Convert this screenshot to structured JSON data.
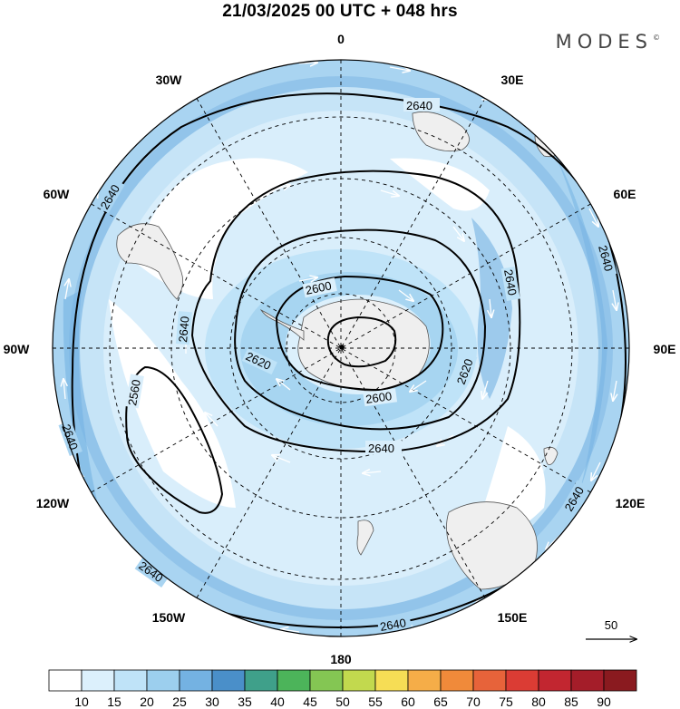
{
  "title": "21/03/2025  00 UTC  + 048 hrs",
  "brand": {
    "name": "MODES",
    "mark": "©"
  },
  "longitude_labels": [
    {
      "id": "lon-0",
      "text": "0"
    },
    {
      "id": "lon-30e",
      "text": "30E"
    },
    {
      "id": "lon-60e",
      "text": "60E"
    },
    {
      "id": "lon-90e",
      "text": "90E"
    },
    {
      "id": "lon-120e",
      "text": "120E"
    },
    {
      "id": "lon-150e",
      "text": "150E"
    },
    {
      "id": "lon-180",
      "text": "180"
    },
    {
      "id": "lon-150w",
      "text": "150W"
    },
    {
      "id": "lon-120w",
      "text": "120W"
    },
    {
      "id": "lon-90w",
      "text": "90W"
    },
    {
      "id": "lon-60w",
      "text": "60W"
    },
    {
      "id": "lon-30w",
      "text": "30W"
    }
  ],
  "contour_labels": [
    {
      "id": "c2640-top",
      "text": "2640"
    },
    {
      "id": "c2640-nw",
      "text": "2640"
    },
    {
      "id": "c2640-e",
      "text": "2640"
    },
    {
      "id": "c2640-inner-e",
      "text": "2640"
    },
    {
      "id": "c2640-w",
      "text": "2640"
    },
    {
      "id": "c2640-sw",
      "text": "2640"
    },
    {
      "id": "c2640-s",
      "text": "2640"
    },
    {
      "id": "c2640-bottom-l",
      "text": "2640"
    },
    {
      "id": "c2640-bottom-r",
      "text": "2640"
    },
    {
      "id": "c2640-se",
      "text": "2640"
    },
    {
      "id": "c2620-l",
      "text": "2620"
    },
    {
      "id": "c2620-r",
      "text": "2620"
    },
    {
      "id": "c2600-t",
      "text": "2600"
    },
    {
      "id": "c2600-b",
      "text": "2600"
    },
    {
      "id": "c2560",
      "text": "2560"
    }
  ],
  "vector_reference": {
    "label": "50"
  },
  "colorbar": {
    "ticks": [
      "10",
      "15",
      "20",
      "25",
      "30",
      "35",
      "40",
      "45",
      "50",
      "55",
      "60",
      "65",
      "70",
      "75",
      "80",
      "85",
      "90"
    ],
    "colors": [
      "#ffffff",
      "#dcf0fc",
      "#bfe3f8",
      "#9ccfee",
      "#74b2e2",
      "#4a8fc9",
      "#3fa08a",
      "#4cb45a",
      "#84c653",
      "#c2d94e",
      "#f6dd55",
      "#f5ad48",
      "#f08a3a",
      "#e7633a",
      "#db3c34",
      "#c22630",
      "#a41d29",
      "#8a1a1f"
    ]
  },
  "colors": {
    "land": "#efefef",
    "field_light": "#d9eefb",
    "field_mid": "#a9d4f1",
    "field_strong": "#7fb6e3"
  }
}
